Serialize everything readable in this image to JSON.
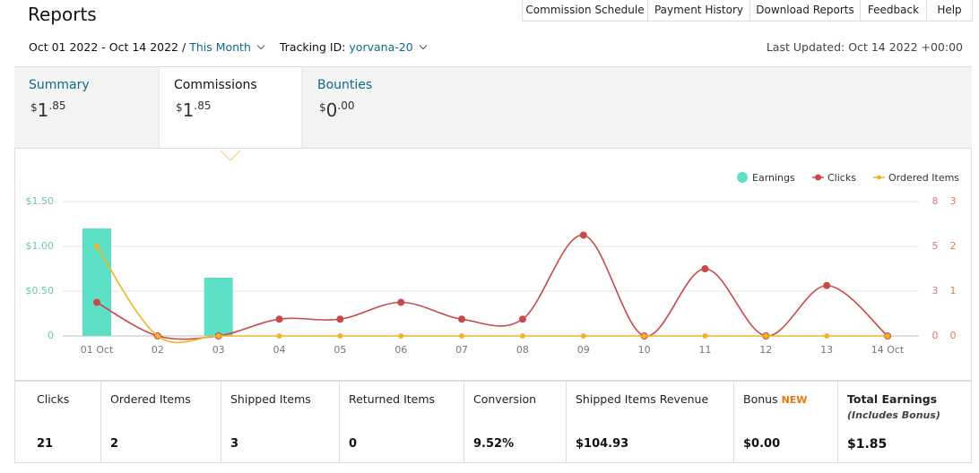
{
  "header": {
    "title": "Reports",
    "nav": [
      "Commission Schedule",
      "Payment History",
      "Download Reports",
      "Feedback",
      "Help"
    ]
  },
  "filters": {
    "date_range": "Oct 01 2022 - Oct 14 2022 /",
    "period": "This Month",
    "tracking_label": "Tracking ID:",
    "tracking_id": "yorvana-20",
    "last_updated": "Last Updated: Oct 14 2022 +00:00"
  },
  "tabs": [
    {
      "label": "Summary",
      "currency": "$",
      "whole": "1",
      "fraction": ".85"
    },
    {
      "label": "Commissions",
      "currency": "$",
      "whole": "1",
      "fraction": ".85"
    },
    {
      "label": "Bounties",
      "currency": "$",
      "whole": "0",
      "fraction": ".00"
    }
  ],
  "chart_data": {
    "type": "combo",
    "x": [
      "01 Oct",
      "02",
      "03",
      "04",
      "05",
      "06",
      "07",
      "08",
      "09",
      "10",
      "11",
      "12",
      "13",
      "14 Oct"
    ],
    "series": [
      {
        "name": "Earnings",
        "type": "bar",
        "color": "#5de0c5",
        "values": [
          1.2,
          0,
          0.65,
          0,
          0,
          0,
          0,
          0,
          0,
          0,
          0,
          0,
          0,
          0
        ]
      },
      {
        "name": "Clicks",
        "type": "line",
        "axis": "y2",
        "color": "#c9484a",
        "values": [
          2,
          0,
          0,
          1,
          1,
          2,
          1,
          1,
          6,
          0,
          4,
          0,
          3,
          0
        ]
      },
      {
        "name": "Ordered Items",
        "type": "line",
        "axis": "y3",
        "color": "#f0b428",
        "values": [
          2,
          0,
          0,
          0,
          0,
          0,
          0,
          0,
          0,
          0,
          0,
          0,
          0,
          0
        ]
      }
    ],
    "ylim": [
      0,
      1.5
    ],
    "yticks": [
      0,
      {
        "value": 0.5,
        "label": "$0.50"
      },
      {
        "value": 1,
        "label": "$1.00"
      },
      {
        "value": 1.5,
        "label": "$1.50"
      }
    ],
    "y2lim": [
      0,
      8
    ],
    "y2ticks": [
      0,
      {
        "value": 2.67,
        "label": "3"
      },
      {
        "value": 5.33,
        "label": "5"
      },
      8
    ],
    "y3lim": [
      0,
      3
    ],
    "y3ticks": [
      0,
      1,
      2,
      3
    ],
    "grid": true,
    "legend": "top-right"
  },
  "stats": [
    {
      "label": "Clicks",
      "value": "21"
    },
    {
      "label": "Ordered Items",
      "value": "2"
    },
    {
      "label": "Shipped Items",
      "value": "3"
    },
    {
      "label": "Returned Items",
      "value": "0"
    },
    {
      "label": "Conversion",
      "value": "9.52%"
    },
    {
      "label": "Shipped Items Revenue",
      "value": "$104.93"
    },
    {
      "label": "Bonus",
      "badge": "NEW",
      "value": "$0.00"
    },
    {
      "label": "Total Earnings",
      "note": "(Includes Bonus)",
      "value": "$1.85"
    }
  ]
}
